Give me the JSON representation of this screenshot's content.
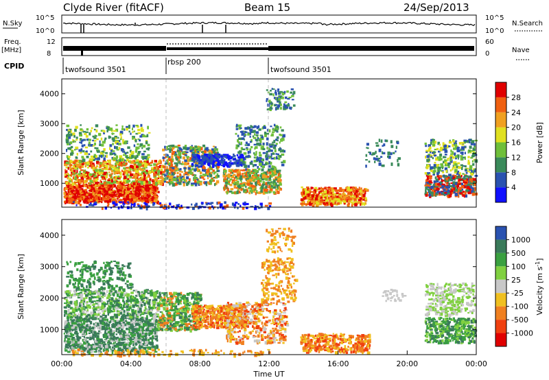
{
  "header": {
    "station": "Clyde River (fitACF)",
    "beam": "Beam 15",
    "date": "24/Sep/2013"
  },
  "noise_panel": {
    "left_label": "N.Sky",
    "right_label": "N.Search",
    "left_ticks": [
      "10^5",
      "10^0"
    ],
    "right_ticks": [
      "10^5",
      "10^0"
    ]
  },
  "freq_panel": {
    "left_label_1": "Freq.",
    "left_label_2": "[MHz]",
    "right_label": "Nave",
    "left_ticks": [
      "12",
      "8"
    ],
    "right_ticks": [
      "60",
      "0"
    ]
  },
  "cpid": {
    "label": "CPID",
    "segments": [
      {
        "name": "twofsound 3501",
        "start_hour": 0,
        "end_hour": 6
      },
      {
        "name": "rbsp 200",
        "start_hour": 6,
        "end_hour": 12
      },
      {
        "name": "twofsound 3501",
        "start_hour": 12,
        "end_hour": 24
      }
    ]
  },
  "chart_data": [
    {
      "type": "heatmap",
      "name": "power",
      "xlabel": "",
      "ylabel": "Slant Range [km]",
      "xlim": [
        0,
        24
      ],
      "ylim": [
        200,
        4500
      ],
      "yticks": [
        "1000",
        "2000",
        "3000",
        "4000"
      ],
      "colorbar": {
        "label": "Power [dB]",
        "ticks": [
          "4",
          "8",
          "12",
          "16",
          "20",
          "24",
          "28"
        ],
        "colors": [
          "#1010ff",
          "#2a52b0",
          "#3a8a5a",
          "#6fbf3a",
          "#e0e020",
          "#f0a020",
          "#f06010",
          "#e00000"
        ]
      }
    },
    {
      "type": "heatmap",
      "name": "velocity",
      "xlabel": "Time UT",
      "ylabel": "Slant Range [km]",
      "xlim": [
        0,
        24
      ],
      "ylim": [
        200,
        4500
      ],
      "xticks": [
        "00:00",
        "04:00",
        "08:00",
        "12:00",
        "16:00",
        "20:00",
        "00:00"
      ],
      "yticks": [
        "1000",
        "2000",
        "3000",
        "4000"
      ],
      "colorbar": {
        "label": "Velocity [m s",
        "label_sup": "-1",
        "label_end": "]",
        "ticks": [
          "1000",
          "500",
          "100",
          "25",
          "-25",
          "-100",
          "-500",
          "-1000"
        ],
        "colors": [
          "#2a52b0",
          "#3a7a5a",
          "#3aa040",
          "#80d040",
          "#c8c8c8",
          "#f0c020",
          "#f08020",
          "#f04010",
          "#e00000"
        ]
      }
    }
  ]
}
